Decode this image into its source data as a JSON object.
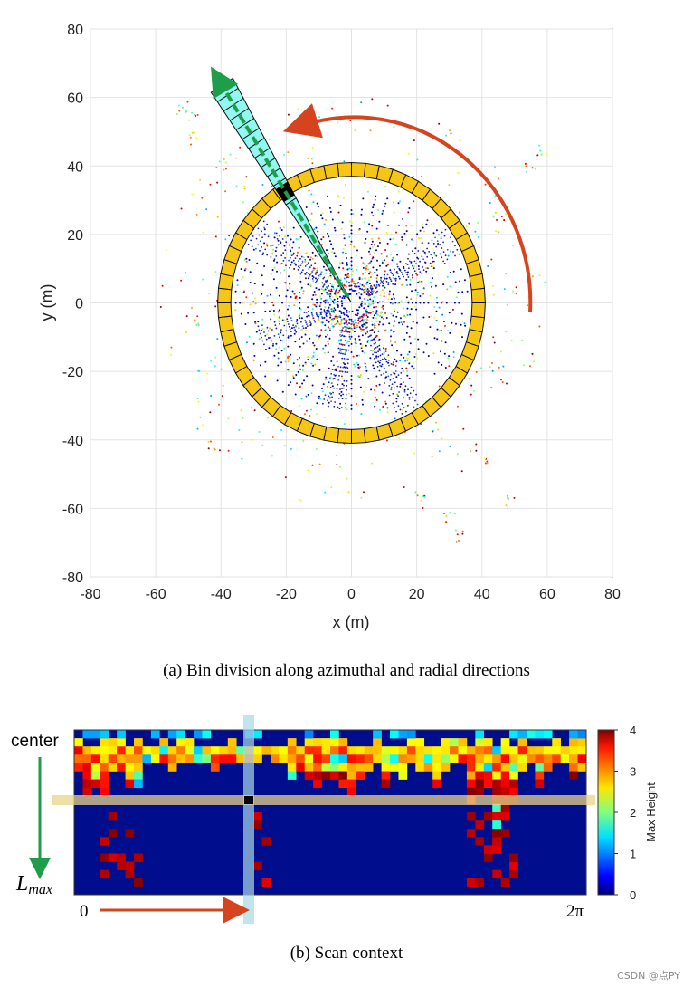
{
  "colors": {
    "ring_fill": "#F5C518",
    "sector_fill": "#7FF5EE",
    "green_arrow": "#1E9E4A",
    "red_arrow": "#D5441E",
    "band_highlight": "#E8D48A",
    "col_highlight": "#A8D8E8",
    "sc_background": "#000D8C"
  },
  "top_panel": {
    "caption": "(a)  Bin division along azimuthal and radial directions",
    "chart_data": {
      "type": "scatter",
      "title": "",
      "xlabel": "x (m)",
      "ylabel": "y (m)",
      "xlim": [
        -80,
        80
      ],
      "ylim": [
        -80,
        80
      ],
      "x_ticks": [
        "-80",
        "-60",
        "-40",
        "-20",
        "0",
        "20",
        "40",
        "60",
        "80"
      ],
      "y_ticks": [
        "80",
        "60",
        "40",
        "20",
        "0",
        "-20",
        "-40",
        "-60",
        "-80"
      ],
      "grid": true,
      "ring": {
        "inner_radius": 37,
        "outer_radius": 41,
        "segments": 60
      },
      "sector": {
        "angle_deg": 122,
        "from_radius": 35,
        "to_radius": 75,
        "half_width_deg": 3,
        "radial_bins": 12
      },
      "highlight_bin_radius": 38,
      "azimuth_arrow": {
        "radius": 54,
        "from_deg": 0,
        "to_deg": 100
      }
    }
  },
  "bottom_panel": {
    "caption": "(b)  Scan context",
    "left_top_label": "center",
    "left_bottom_label": "L",
    "left_bottom_sub": "max",
    "x_start_label": "0",
    "x_end_label": "2π",
    "colorbar_label": "Max Height",
    "chart_data": {
      "type": "heatmap",
      "rows": 20,
      "cols": 60,
      "vmin": 0,
      "vmax": 4,
      "colorbar_ticks": [
        "4",
        "3",
        "2",
        "1",
        "0"
      ],
      "highlight_row": 7,
      "highlight_col": 20
    }
  },
  "watermark": "CSDN @点PY"
}
